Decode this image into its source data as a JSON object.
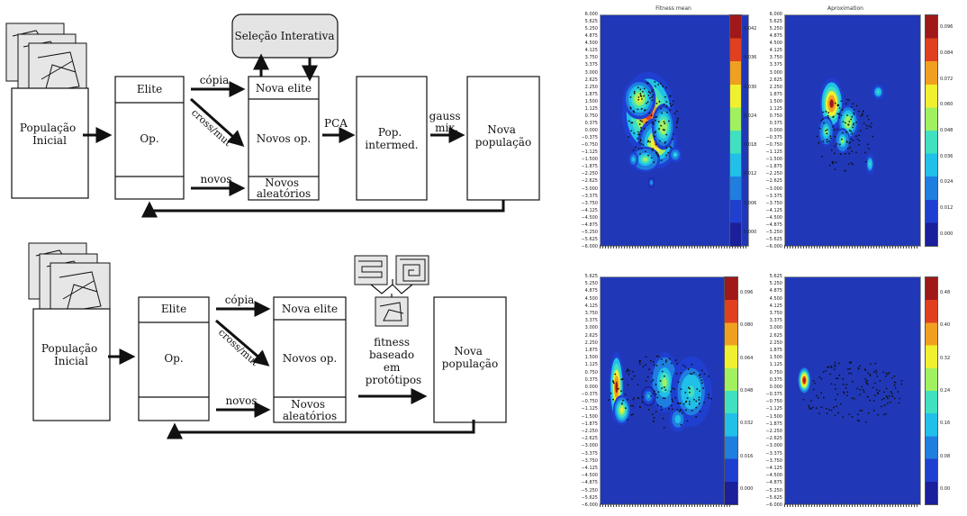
{
  "flow_top": {
    "populacao_inicial": [
      "População",
      "Inicial"
    ],
    "elite": "Elite",
    "op": "Op.",
    "copia": "cópia",
    "cross_mut": "cross/mut",
    "novos": "novos",
    "nova_elite": "Nova elite",
    "novos_op": "Novos op.",
    "novos_aleatorios": [
      "Novos",
      "aleatórios"
    ],
    "selecao": "Seleção Interativa",
    "pca": "PCA",
    "pop_intermed": [
      "Pop.",
      "intermed."
    ],
    "gauss_mix": [
      "gauss",
      "mix."
    ],
    "nova_populacao": [
      "Nova",
      "população"
    ]
  },
  "flow_bottom": {
    "populacao_inicial": [
      "População",
      "Inicial"
    ],
    "elite": "Elite",
    "op": "Op.",
    "copia": "cópia",
    "cross_mut": "cross/mut",
    "novos": "novos",
    "nova_elite": "Nova elite",
    "novos_op": "Novos op.",
    "novos_aleatorios": [
      "Novos",
      "aleatórios"
    ],
    "fitness": [
      "fitness",
      "baseado",
      "em",
      "protótipos"
    ],
    "nova_populacao": [
      "Nova",
      "população"
    ]
  },
  "heatmaps": [
    {
      "title": "Fitness mean",
      "y_ticks": [
        "6.000",
        "5.625",
        "5.250",
        "4.875",
        "4.500",
        "4.125",
        "3.750",
        "3.375",
        "3.000",
        "2.625",
        "2.250",
        "1.875",
        "1.500",
        "1.125",
        "0.750",
        "0.375",
        "0.000",
        "−0.375",
        "−0.750",
        "−1.125",
        "−1.500",
        "−1.875",
        "−2.250",
        "−2.625",
        "−3.000",
        "−3.375",
        "−3.750",
        "−4.125",
        "−4.500",
        "−4.875",
        "−5.250",
        "−5.625",
        "−6.000"
      ],
      "colorbar_ticks": [
        "0.042",
        "0.036",
        "0.030",
        "0.024",
        "0.018",
        "0.012",
        "0.006",
        "0.000"
      ]
    },
    {
      "title": "Aproximation",
      "y_ticks": [
        "6.000",
        "5.625",
        "5.250",
        "4.875",
        "4.500",
        "4.125",
        "3.750",
        "3.375",
        "3.000",
        "2.625",
        "2.250",
        "1.875",
        "1.500",
        "1.125",
        "0.750",
        "0.375",
        "0.000",
        "−0.375",
        "−0.750",
        "−1.125",
        "−1.500",
        "−1.875",
        "−2.250",
        "−2.625",
        "−3.000",
        "−3.375",
        "−3.750",
        "−4.125",
        "−4.500",
        "−4.875",
        "−5.250",
        "−5.625",
        "−6.000"
      ],
      "colorbar_ticks": [
        "0.096",
        "0.084",
        "0.072",
        "0.060",
        "0.048",
        "0.036",
        "0.024",
        "0.012",
        "0.000"
      ]
    },
    {
      "title": "",
      "y_ticks": [
        "5.625",
        "5.250",
        "4.875",
        "4.500",
        "4.125",
        "3.750",
        "3.375",
        "3.000",
        "2.625",
        "2.250",
        "1.875",
        "1.500",
        "1.125",
        "0.750",
        "0.375",
        "0.000",
        "−0.375",
        "−0.750",
        "−1.125",
        "−1.500",
        "−1.875",
        "−2.250",
        "−2.625",
        "−3.000",
        "−3.375",
        "−3.750",
        "−4.125",
        "−4.500",
        "−4.875",
        "−5.250",
        "−5.625",
        "−6.000"
      ],
      "colorbar_ticks": [
        "0.096",
        "0.080",
        "0.064",
        "0.048",
        "0.032",
        "0.016",
        "0.000"
      ]
    },
    {
      "title": "",
      "y_ticks": [
        "5.625",
        "5.250",
        "4.875",
        "4.500",
        "4.125",
        "3.750",
        "3.375",
        "3.000",
        "2.625",
        "2.250",
        "1.875",
        "1.500",
        "1.125",
        "0.750",
        "0.375",
        "0.000",
        "−0.375",
        "−0.750",
        "−1.125",
        "−1.500",
        "−1.875",
        "−2.250",
        "−2.625",
        "−3.000",
        "−3.375",
        "−3.750",
        "−4.125",
        "−4.500",
        "−4.875",
        "−5.250",
        "−5.625",
        "−6.000"
      ],
      "colorbar_ticks": [
        "0.48",
        "0.40",
        "0.32",
        "0.24",
        "0.16",
        "0.08",
        "0.00"
      ]
    }
  ],
  "colors": {
    "heat_background": "#2038b8",
    "colormap": [
      "#1a1f9c",
      "#1f3fd0",
      "#1f7fe0",
      "#20c0e8",
      "#40e0c0",
      "#a0f060",
      "#f0f030",
      "#f0a020",
      "#e04020",
      "#a01818"
    ]
  }
}
